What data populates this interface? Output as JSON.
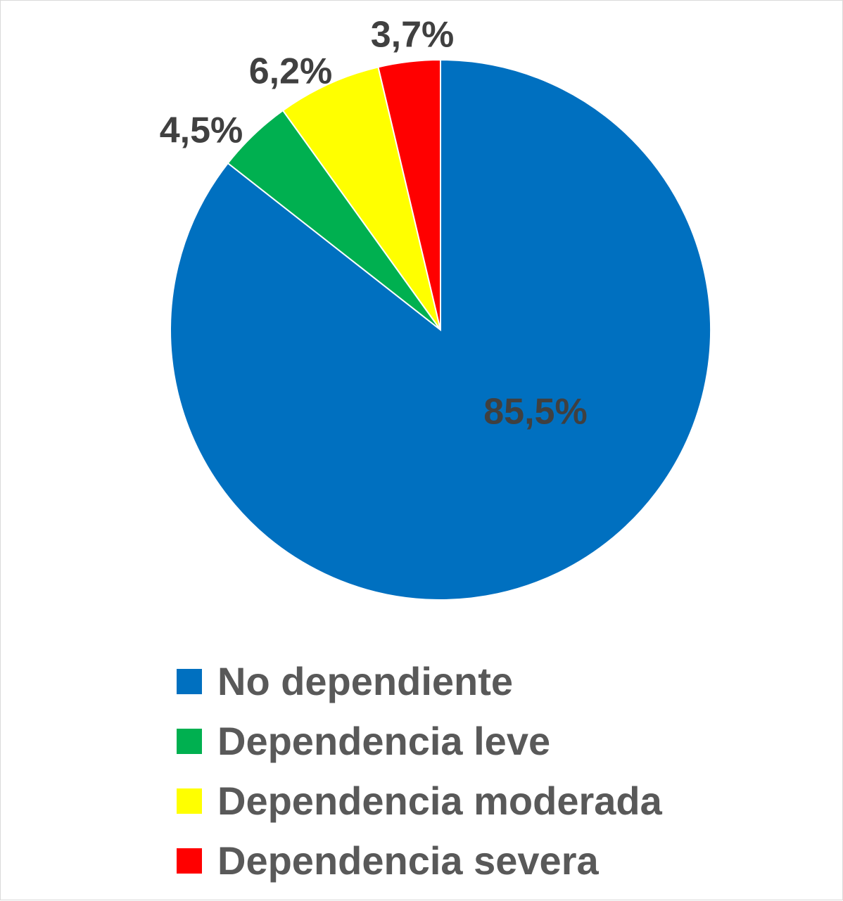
{
  "chart_data": {
    "type": "pie",
    "categories": [
      "No dependiente",
      "Dependencia leve",
      "Dependencia moderada",
      "Dependencia severa"
    ],
    "values": [
      85.5,
      4.5,
      6.2,
      3.7
    ],
    "labels": [
      "85,5%",
      "4,5%",
      "6,2%",
      "3,7%"
    ],
    "colors": [
      "#0070C0",
      "#00B050",
      "#FFFF00",
      "#FF0000"
    ],
    "start_angle_deg": 0,
    "direction": "clockwise",
    "legend_position": "bottom"
  }
}
